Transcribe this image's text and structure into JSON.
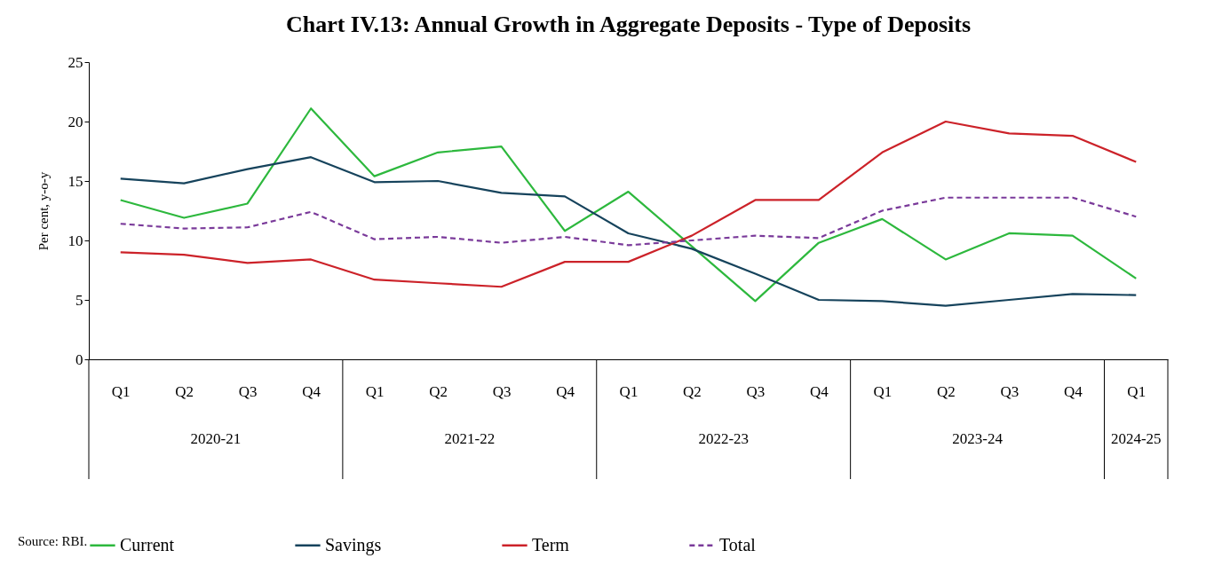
{
  "chart_data": {
    "type": "line",
    "title": "Chart IV.13: Annual Growth in Aggregate Deposits - Type of Deposits",
    "ylabel": "Per cent, y-o-y",
    "categories": [
      "Q1",
      "Q2",
      "Q3",
      "Q4",
      "Q1",
      "Q2",
      "Q3",
      "Q4",
      "Q1",
      "Q2",
      "Q3",
      "Q4",
      "Q1",
      "Q2",
      "Q3",
      "Q4",
      "Q1"
    ],
    "series": [
      {
        "name": "Current",
        "color": "#2db83d",
        "line_style": "solid",
        "values": [
          13.4,
          11.9,
          13.1,
          21.1,
          15.4,
          17.4,
          17.9,
          10.8,
          14.1,
          9.5,
          4.9,
          9.8,
          11.8,
          8.4,
          10.6,
          10.4,
          6.8
        ]
      },
      {
        "name": "Savings",
        "color": "#16435c",
        "line_style": "solid",
        "values": [
          15.2,
          14.8,
          16.0,
          17.0,
          14.9,
          15.0,
          14.0,
          13.7,
          10.6,
          9.3,
          7.2,
          5.0,
          4.9,
          4.5,
          5.0,
          5.5,
          5.4
        ]
      },
      {
        "name": "Term",
        "color": "#cc2229",
        "line_style": "solid",
        "values": [
          9.0,
          8.8,
          8.1,
          8.4,
          6.7,
          6.4,
          6.1,
          8.2,
          8.2,
          10.4,
          13.4,
          13.4,
          17.4,
          20.0,
          19.0,
          18.8,
          16.6
        ]
      },
      {
        "name": "Total",
        "color": "#7a3a9a",
        "line_style": "dashed",
        "values": [
          11.4,
          11.0,
          11.1,
          12.4,
          10.1,
          10.3,
          9.8,
          10.3,
          9.6,
          10.0,
          10.4,
          10.2,
          12.5,
          13.6,
          13.6,
          13.6,
          12.0
        ]
      }
    ],
    "ylim": [
      0,
      25
    ],
    "yticks": [
      0,
      5,
      10,
      15,
      20,
      25
    ],
    "grid": false,
    "legend": "bottom",
    "marker": "none",
    "annotations": [
      "2020-21",
      "2021-22",
      "2022-23",
      "2023-24",
      "2024-25",
      "Source: RBI."
    ]
  }
}
